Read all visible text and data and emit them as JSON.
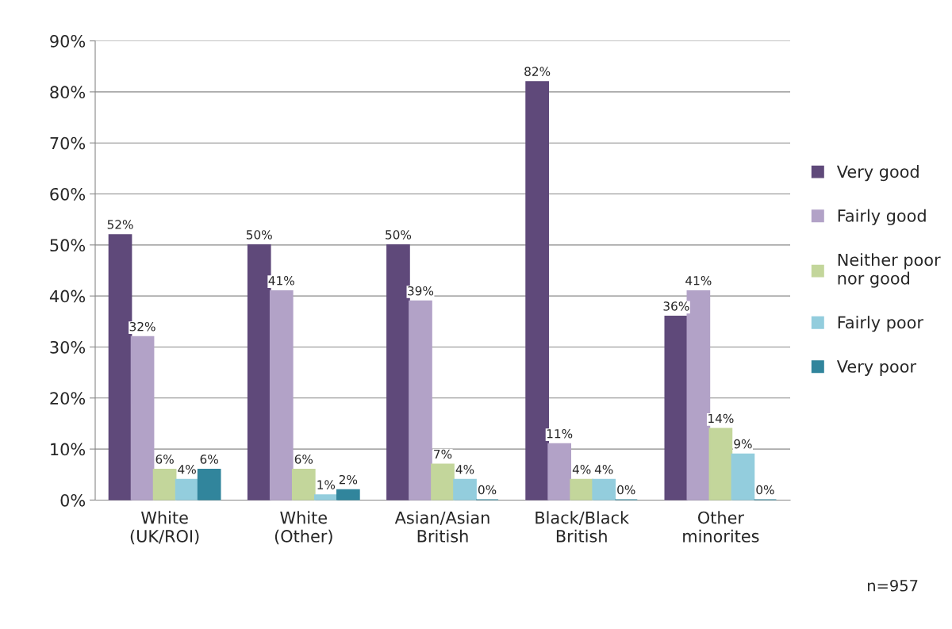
{
  "chart_data": {
    "type": "bar",
    "categories": [
      "White\n(UK/ROI)",
      "White\n(Other)",
      "Asian/Asian\nBritish",
      "Black/Black\nBritish",
      "Other\nminorites"
    ],
    "series": [
      {
        "name": "Very good",
        "color": "#5f497a",
        "values": [
          52,
          50,
          50,
          82,
          36
        ],
        "value_labels": [
          "52%",
          "50%",
          "50%",
          "82%",
          "36%"
        ]
      },
      {
        "name": "Fairly good",
        "color": "#b2a2c7",
        "values": [
          32,
          41,
          39,
          11,
          41
        ],
        "value_labels": [
          "32%",
          "41%",
          "39%",
          "11%",
          "41%"
        ]
      },
      {
        "name": "Neither poor\nnor good",
        "color": "#c3d69b",
        "values": [
          6,
          6,
          7,
          4,
          14
        ],
        "value_labels": [
          "6%",
          "6%",
          "7%",
          "4%",
          "14%"
        ]
      },
      {
        "name": "Fairly poor",
        "color": "#93cddd",
        "values": [
          4,
          1,
          4,
          4,
          9
        ],
        "value_labels": [
          "4%",
          "1%",
          "4%",
          "4%",
          "9%"
        ]
      },
      {
        "name": "Very poor",
        "color": "#31859c",
        "values": [
          6,
          2,
          0,
          0,
          0
        ],
        "value_labels": [
          "6%",
          "2%",
          "0%",
          "0%",
          "0%"
        ]
      }
    ],
    "ylim": [
      0,
      90
    ],
    "yticks": [
      {
        "value": 0,
        "label": "0%"
      },
      {
        "value": 10,
        "label": "10%"
      },
      {
        "value": 20,
        "label": "20%"
      },
      {
        "value": 30,
        "label": "30%"
      },
      {
        "value": 40,
        "label": "40%"
      },
      {
        "value": 50,
        "label": "50%"
      },
      {
        "value": 60,
        "label": "60%"
      },
      {
        "value": 70,
        "label": "70%"
      },
      {
        "value": 80,
        "label": "80%"
      },
      {
        "value": 90,
        "label": "90%"
      }
    ],
    "grid": "y",
    "legend": "right",
    "annotations": [
      "n=957"
    ]
  }
}
